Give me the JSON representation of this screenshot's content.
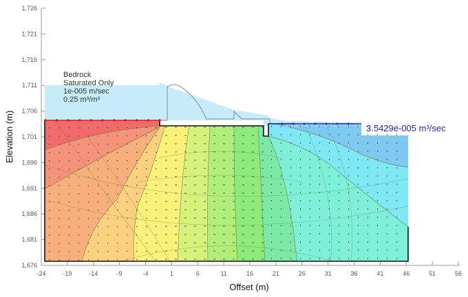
{
  "chart_data": {
    "type": "heatmap",
    "title": "",
    "xlabel": "Offset (m)",
    "ylabel": "Elevation (m)",
    "xlim": [
      -24,
      56
    ],
    "ylim": [
      1676,
      1726
    ],
    "x_ticks": [
      "-24",
      "-19",
      "-14",
      "-9",
      "-4",
      "1",
      "6",
      "11",
      "16",
      "21",
      "26",
      "31",
      "36",
      "41",
      "46",
      "51",
      "56"
    ],
    "y_ticks": [
      "1,676",
      "1,681",
      "1,686",
      "1,691",
      "1,696",
      "1,701",
      "1,706",
      "1,711",
      "1,716",
      "1,721",
      "1,726"
    ],
    "grid": false,
    "annotations": {
      "material": {
        "name": "Bedrock",
        "model": "Saturated Only",
        "conductivity": "1e-005 m/sec",
        "water_content": "0.25 m³/m³"
      },
      "flux": "3.5429e-005 m³/sec"
    },
    "contour_fill_colors": [
      "#f26b6b",
      "#f5927a",
      "#f7b07c",
      "#fbd07f",
      "#f8f27a",
      "#d7f27a",
      "#b2ee7a",
      "#8ceb7a",
      "#7de9a6",
      "#7ef0d8",
      "#7ee8f4",
      "#7ec9f0"
    ],
    "regions": {
      "upstream_water": {
        "x": [
          -24,
          1
        ],
        "y": [
          1704.5,
          1711
        ],
        "color": "#c5ecf8"
      },
      "downstream_water": {
        "x": [
          20,
          46
        ],
        "y": [
          1704,
          1701
        ],
        "color": "#c5ecf8"
      }
    }
  },
  "labels": {
    "material_name": "Bedrock",
    "material_model": "Saturated Only",
    "material_k": "1e-005 m/sec",
    "material_vwc": "0.25 m³/m³",
    "flux_value": "3.5429e-005 m³/sec",
    "x_axis_title": "Offset (m)",
    "y_axis_title": "Elevation (m)"
  }
}
